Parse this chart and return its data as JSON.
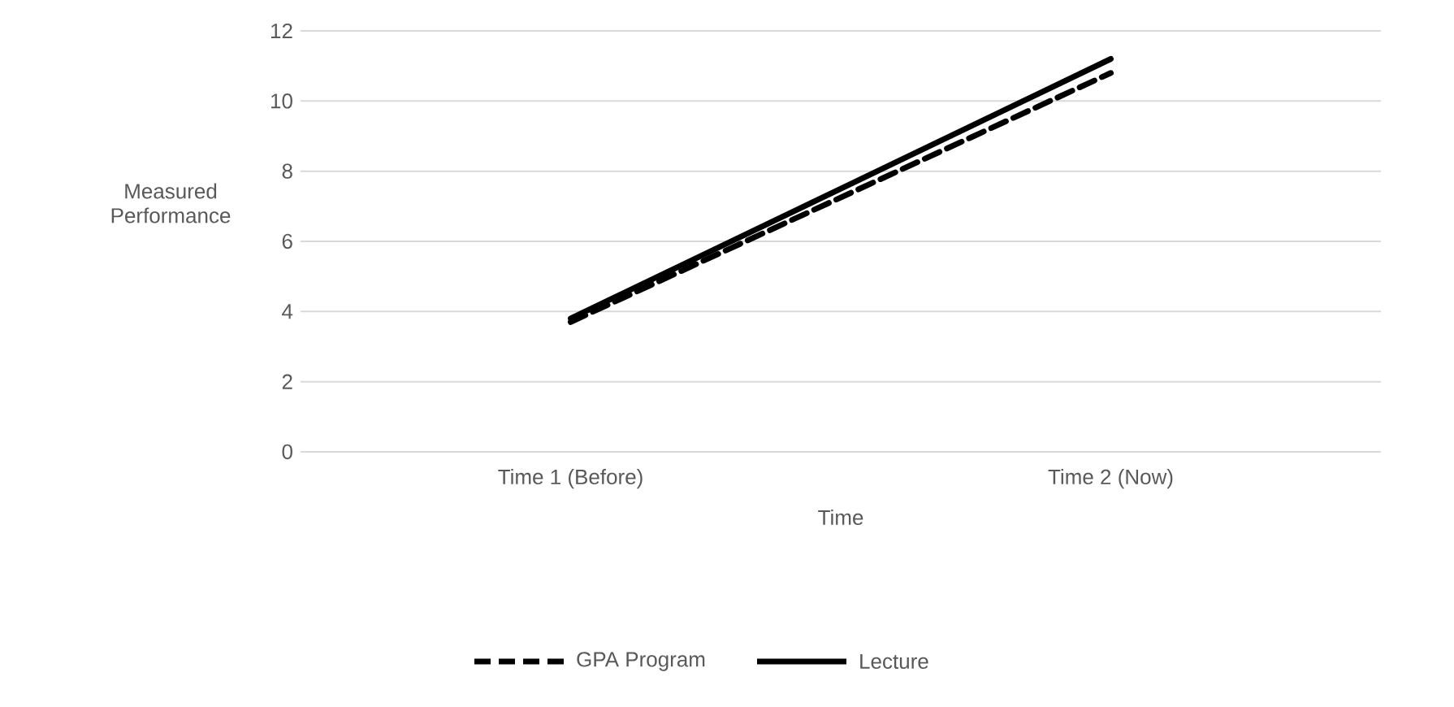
{
  "chart_data": {
    "type": "line",
    "xlabel": "Time",
    "ylabel": "Measured Performance",
    "categories": [
      "Time 1 (Before)",
      "Time 2 (Now)"
    ],
    "series": [
      {
        "name": "GPA Program",
        "color": "#000000",
        "values": [
          3.7,
          10.8
        ],
        "line_style": "dashed"
      },
      {
        "name": "Lecture",
        "color": "#000000",
        "values": [
          3.8,
          11.2
        ],
        "line_style": "solid"
      }
    ],
    "ylim": [
      0,
      12
    ],
    "yticks": [
      0,
      2,
      4,
      6,
      8,
      10,
      12
    ],
    "grid": "y",
    "legend": "bottom",
    "marker": "none"
  }
}
